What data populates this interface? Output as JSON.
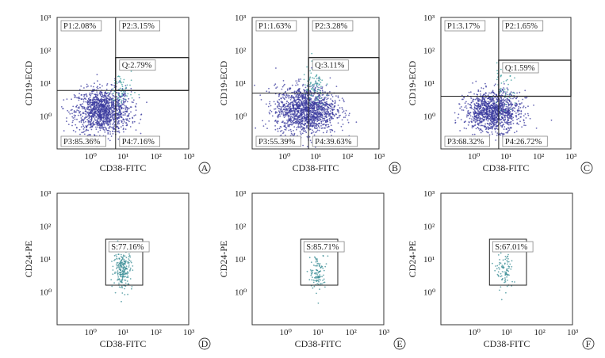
{
  "chart_data": [
    {
      "type": "scatter",
      "panel": "A",
      "xlabel": "CD38-FITC",
      "ylabel": "CD19-ECD",
      "x_scale": "log",
      "y_scale": "log",
      "xlim": [
        0.1,
        1000
      ],
      "ylim": [
        0.1,
        1000
      ],
      "x_tick_labels": [
        "10⁰",
        "10¹",
        "10²",
        "10³"
      ],
      "y_tick_labels": [
        "10⁰",
        "10¹",
        "10²",
        "10³"
      ],
      "gates": [
        {
          "label": "P1:2.08%",
          "value": 2.08
        },
        {
          "label": "P2:3.15%",
          "value": 3.15
        },
        {
          "label": "Q:2.79%",
          "value": 2.79
        },
        {
          "label": "P3:85.36%",
          "value": 85.36
        },
        {
          "label": "P4:7.16%",
          "value": 7.16
        }
      ],
      "quadrant_cut": {
        "x": 6,
        "y": 6
      },
      "q_gate": {
        "x": [
          6,
          1000
        ],
        "y": [
          6,
          60
        ]
      },
      "cloud": {
        "center": [
          2.5,
          1.4
        ],
        "spread": [
          0.42,
          0.34
        ],
        "n": 1300,
        "color": "#3a3a9e",
        "sub_color": "#46a2a2",
        "sub_n": 60,
        "sub_center": [
          9,
          6
        ]
      }
    },
    {
      "type": "scatter",
      "panel": "B",
      "xlabel": "CD38-FITC",
      "ylabel": "CD19-ECD",
      "x_scale": "log",
      "y_scale": "log",
      "xlim": [
        0.1,
        1000
      ],
      "ylim": [
        0.1,
        1000
      ],
      "x_tick_labels": [
        "10⁰",
        "10¹",
        "10²",
        "10³"
      ],
      "y_tick_labels": [
        "10⁰",
        "10¹",
        "10²",
        "10³"
      ],
      "gates": [
        {
          "label": "P1:1.63%",
          "value": 1.63
        },
        {
          "label": "P2:3.28%",
          "value": 3.28
        },
        {
          "label": "Q:3.11%",
          "value": 3.11
        },
        {
          "label": "P3:55.39%",
          "value": 55.39
        },
        {
          "label": "P4:39.63%",
          "value": 39.63
        }
      ],
      "quadrant_cut": {
        "x": 6,
        "y": 5
      },
      "q_gate": {
        "x": [
          6,
          1000
        ],
        "y": [
          5,
          60
        ]
      },
      "cloud": {
        "center": [
          5,
          1.5
        ],
        "spread": [
          0.48,
          0.36
        ],
        "n": 1500,
        "color": "#3a3a9e",
        "sub_color": "#46a2a2",
        "sub_n": 80,
        "sub_center": [
          9,
          7
        ]
      }
    },
    {
      "type": "scatter",
      "panel": "C",
      "xlabel": "CD38-FITC",
      "ylabel": "CD19-ECD",
      "x_scale": "log",
      "y_scale": "log",
      "xlim": [
        0.1,
        1000
      ],
      "ylim": [
        0.1,
        1000
      ],
      "x_tick_labels": [
        "10⁰",
        "10¹",
        "10²",
        "10³"
      ],
      "y_tick_labels": [
        "10⁰",
        "10¹",
        "10²",
        "10³"
      ],
      "gates": [
        {
          "label": "P1:3.17%",
          "value": 3.17
        },
        {
          "label": "P2:1.65%",
          "value": 1.65
        },
        {
          "label": "Q:1.59%",
          "value": 1.59
        },
        {
          "label": "P3:68.32%",
          "value": 68.32
        },
        {
          "label": "P4:26.72%",
          "value": 26.72
        }
      ],
      "quadrant_cut": {
        "x": 6,
        "y": 4
      },
      "q_gate": {
        "x": [
          6,
          1000
        ],
        "y": [
          4,
          50
        ]
      },
      "cloud": {
        "center": [
          4,
          1.4
        ],
        "spread": [
          0.42,
          0.3
        ],
        "n": 1200,
        "color": "#3a3a9e",
        "sub_color": "#46a2a2",
        "sub_n": 45,
        "sub_center": [
          8,
          6
        ]
      }
    },
    {
      "type": "scatter",
      "panel": "D",
      "xlabel": "CD38-FITC",
      "ylabel": "CD24-PE",
      "x_scale": "log",
      "y_scale": "log",
      "xlim": [
        0.1,
        1000
      ],
      "ylim": [
        0.1,
        1000
      ],
      "x_tick_labels": [
        "10⁰",
        "10¹",
        "10²",
        "10³"
      ],
      "y_tick_labels": [
        "10⁰",
        "10¹",
        "10²",
        "10³"
      ],
      "gates": [
        {
          "label": "S:77.16%",
          "value": 77.16
        }
      ],
      "s_gate": {
        "x": [
          3,
          40
        ],
        "y": [
          1.6,
          40
        ]
      },
      "cloud": {
        "center": [
          10,
          5
        ],
        "spread": [
          0.14,
          0.3
        ],
        "n": 220,
        "color": "#3b8e96"
      }
    },
    {
      "type": "scatter",
      "panel": "E",
      "xlabel": "CD38-FITC",
      "ylabel": "CD24-PE",
      "x_scale": "log",
      "y_scale": "log",
      "xlim": [
        0.1,
        1000
      ],
      "ylim": [
        0.1,
        1000
      ],
      "x_tick_labels": [
        "10⁰",
        "10¹",
        "10²",
        "10³"
      ],
      "y_tick_labels": [
        "10⁰",
        "10¹",
        "10²",
        "10³"
      ],
      "gates": [
        {
          "label": "S:85.71%",
          "value": 85.71
        }
      ],
      "s_gate": {
        "x": [
          3,
          40
        ],
        "y": [
          1.6,
          40
        ]
      },
      "cloud": {
        "center": [
          10,
          4
        ],
        "spread": [
          0.12,
          0.28
        ],
        "n": 110,
        "color": "#3b8e96"
      }
    },
    {
      "type": "scatter",
      "panel": "F",
      "xlabel": "CD38-FITC",
      "ylabel": "CD24-PE",
      "x_scale": "log",
      "y_scale": "log",
      "xlim": [
        0.1,
        1000
      ],
      "ylim": [
        0.1,
        1000
      ],
      "x_tick_labels": [
        "10⁰",
        "10¹",
        "10²",
        "10³"
      ],
      "y_tick_labels": [
        "10⁰",
        "10¹",
        "10²",
        "10³"
      ],
      "gates": [
        {
          "label": "S:67.01%",
          "value": 67.01
        }
      ],
      "s_gate": {
        "x": [
          3,
          40
        ],
        "y": [
          1.6,
          40
        ]
      },
      "cloud": {
        "center": [
          9,
          4
        ],
        "spread": [
          0.13,
          0.3
        ],
        "n": 90,
        "color": "#3b8e96"
      }
    }
  ]
}
